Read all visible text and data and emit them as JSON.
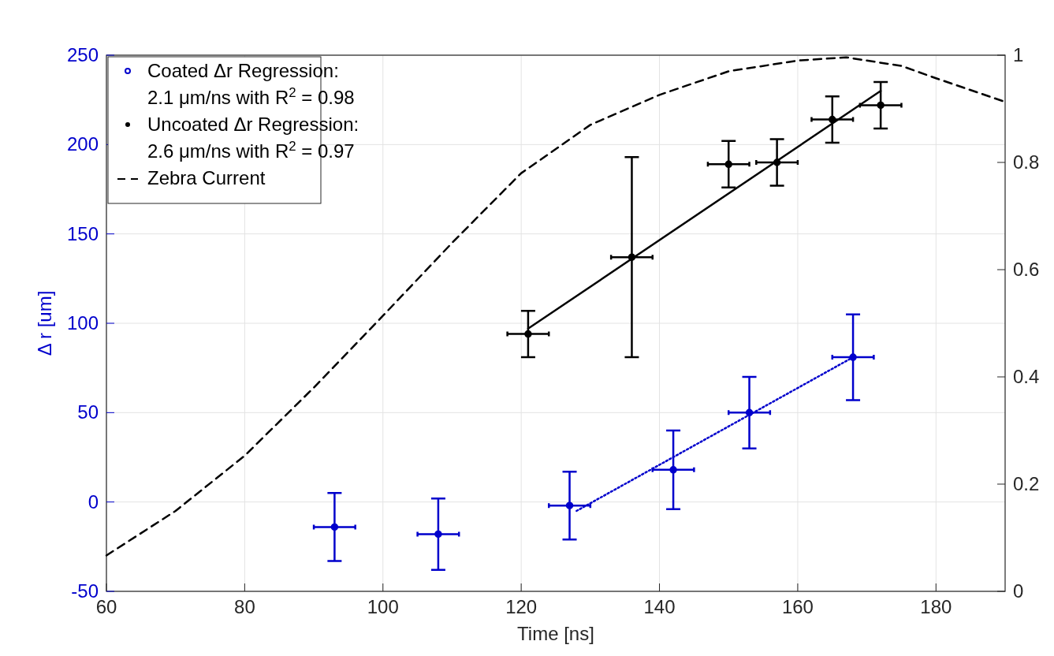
{
  "chart_data": {
    "type": "scatter",
    "xlabel": "Time [ns]",
    "ylabel": "Δ r [um]",
    "xlim": [
      60,
      190
    ],
    "xticks": [
      60,
      80,
      100,
      120,
      140,
      160,
      180
    ],
    "ylim": [
      -50,
      250
    ],
    "yticks": [
      -50,
      0,
      50,
      100,
      150,
      200,
      250
    ],
    "y2lim": [
      0,
      1
    ],
    "y2ticks": [
      0,
      0.2,
      0.4,
      0.6,
      0.8,
      1
    ],
    "grid": true,
    "legend": "top left",
    "series": [
      {
        "name": "Coated Δr Regression:\n2.1 μm/ns with R$^{2}$ = 0.98",
        "color": "#0000cc",
        "marker": "circle",
        "x": [
          93,
          108,
          127,
          142,
          153,
          168
        ],
        "values": [
          -14,
          -18,
          -2,
          18,
          50,
          81
        ],
        "errors": [
          19,
          20,
          19,
          22,
          20,
          24
        ],
        "xerrors": [
          3,
          3,
          3,
          3,
          3,
          3
        ]
      },
      {
        "name": "Uncoated Δr Regression:\n2.6 μm/ns with R$^{2}$ = 0.97",
        "color": "#000000",
        "marker": "circle",
        "x": [
          121,
          136,
          150,
          157,
          165,
          172
        ],
        "values": [
          94,
          137,
          189,
          190,
          214,
          222
        ],
        "errors": [
          13,
          56,
          13,
          13,
          13,
          13
        ],
        "xerrors": [
          3,
          3,
          3,
          3,
          3,
          3
        ]
      },
      {
        "type": "line",
        "color": "#0000cc",
        "line_style": "dotted",
        "x": [
          128,
          168
        ],
        "values": [
          -5,
          81
        ]
      },
      {
        "type": "line",
        "color": "#000000",
        "line_style": "solid",
        "x": [
          121,
          172
        ],
        "values": [
          97,
          230
        ]
      },
      {
        "type": "line",
        "name": "Zebra Current",
        "axis": "y2",
        "color": "#000000",
        "line_style": "dashed",
        "x": [
          60,
          70,
          80,
          90,
          100,
          110,
          120,
          130,
          140,
          150,
          160,
          167,
          175,
          180,
          190
        ],
        "values": [
          0.067,
          0.15,
          0.253,
          0.38,
          0.514,
          0.65,
          0.78,
          0.87,
          0.926,
          0.97,
          0.99,
          0.996,
          0.98,
          0.957,
          0.913
        ]
      }
    ]
  }
}
